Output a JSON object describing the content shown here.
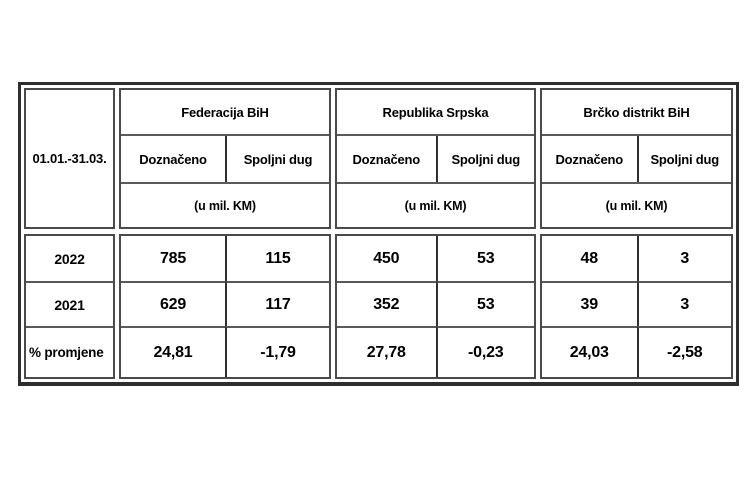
{
  "table": {
    "period_label": "01.01.-31.03.",
    "groups": [
      {
        "name": "Federacija BiH",
        "subcols": [
          "Doznačeno",
          "Spoljni dug"
        ],
        "unit": "(u mil. KM)"
      },
      {
        "name": "Republika Srpska",
        "subcols": [
          "Doznačeno",
          "Spoljni dug"
        ],
        "unit": "(u mil. KM)"
      },
      {
        "name": "Brčko distrikt BiH",
        "subcols": [
          "Doznačeno",
          "Spoljni dug"
        ],
        "unit": "(u mil. KM)"
      }
    ],
    "rows": [
      {
        "label": "2022",
        "values": [
          "785",
          "115",
          "450",
          "53",
          "48",
          "3"
        ]
      },
      {
        "label": "2021",
        "values": [
          "629",
          "117",
          "352",
          "53",
          "39",
          "3"
        ]
      },
      {
        "label": "% promjene",
        "values": [
          "24,81",
          "-1,79",
          "27,78",
          "-0,23",
          "24,03",
          "-2,58"
        ]
      }
    ]
  },
  "chart_data": {
    "type": "table",
    "title": "",
    "row_header": "01.01.-31.03.",
    "column_groups": [
      "Federacija BiH",
      "Republika Srpska",
      "Brčko distrikt BiH"
    ],
    "sub_columns": [
      "Doznačeno",
      "Spoljni dug"
    ],
    "unit": "(u mil. KM)",
    "rows": [
      {
        "label": "2022",
        "values": [
          785,
          115,
          450,
          53,
          48,
          3
        ]
      },
      {
        "label": "2021",
        "values": [
          629,
          117,
          352,
          53,
          39,
          3
        ]
      },
      {
        "label": "% promjene",
        "values": [
          24.81,
          -1.79,
          27.78,
          -0.23,
          24.03,
          -2.58
        ]
      }
    ]
  }
}
